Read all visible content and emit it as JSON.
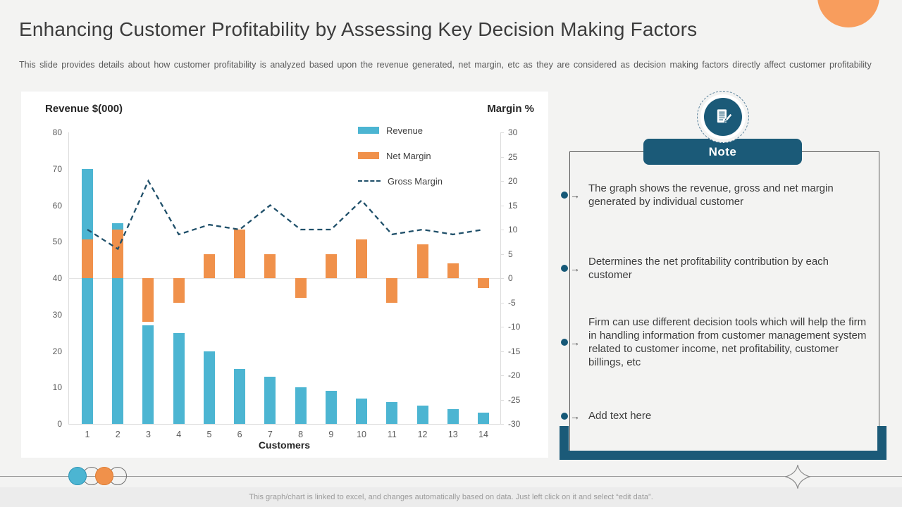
{
  "slide": {
    "title": "Enhancing Customer Profitability by Assessing Key Decision Making Factors",
    "subtitle": "This slide provides details about how customer profitability is analyzed based upon the revenue generated, net margin, etc as they are considered as decision making factors directly affect customer profitability"
  },
  "chart_data": {
    "type": "bar",
    "subtype": "combo-bar-line",
    "categories": [
      "1",
      "2",
      "3",
      "4",
      "5",
      "6",
      "7",
      "8",
      "9",
      "10",
      "11",
      "12",
      "13",
      "14"
    ],
    "series": [
      {
        "name": "Revenue",
        "type": "bar",
        "axis": "left",
        "color": "#4cb5d2",
        "values": [
          70,
          55,
          27,
          25,
          20,
          15,
          13,
          10,
          9,
          7,
          6,
          5,
          4,
          3
        ]
      },
      {
        "name": "Net Margin",
        "type": "bar",
        "axis": "right",
        "color": "#f0914b",
        "values": [
          8,
          10,
          -9,
          -5,
          5,
          10,
          5,
          -4,
          5,
          8,
          -5,
          7,
          3,
          -2
        ]
      },
      {
        "name": "Gross Margin",
        "type": "dashed-line",
        "axis": "right",
        "color": "#20506a",
        "values": [
          10,
          6,
          20,
          9,
          11,
          10,
          15,
          10,
          10,
          16,
          9,
          10,
          9,
          10
        ]
      }
    ],
    "left_axis": {
      "title": "Revenue $(000)",
      "min": 0,
      "max": 80,
      "ticks": [
        80,
        70,
        60,
        50,
        40,
        30,
        20,
        10,
        0
      ]
    },
    "right_axis": {
      "title": "Margin %",
      "min": -30,
      "max": 30,
      "ticks": [
        30,
        25,
        20,
        15,
        10,
        5,
        0,
        -5,
        -10,
        -15,
        -20,
        -25,
        -30
      ]
    },
    "x_axis": {
      "title": "Customers",
      "labels": [
        "1",
        "2",
        "3",
        "4",
        "5",
        "6",
        "7",
        "8",
        "9",
        "10",
        "11",
        "12",
        "13",
        "14"
      ]
    },
    "grid": "horizontal line at right-axis 0 only",
    "legend_position": "top-right inside plot"
  },
  "note": {
    "tab_label": "Note",
    "icon": "memo-pencil-icon",
    "bullets": [
      "The graph shows the revenue, gross and net margin generated by individual customer",
      "Determines the net profitability contribution by each customer",
      "Firm can use different decision tools which will help the firm in handling information from customer management system related to customer income, net profitability, customer billings, etc",
      "Add text here"
    ]
  },
  "footer": {
    "text": "This graph/chart is linked to excel, and changes automatically based on data. Just left click on it and select “edit data”."
  },
  "colors": {
    "revenue_bar": "#4cb5d2",
    "net_margin_bar": "#f0914b",
    "gross_margin_line": "#20506a",
    "note_teal": "#1b5a78",
    "accent_circle": "#f89d5d",
    "slide_background": "#f3f3f2",
    "panel_background": "#ffffff"
  }
}
